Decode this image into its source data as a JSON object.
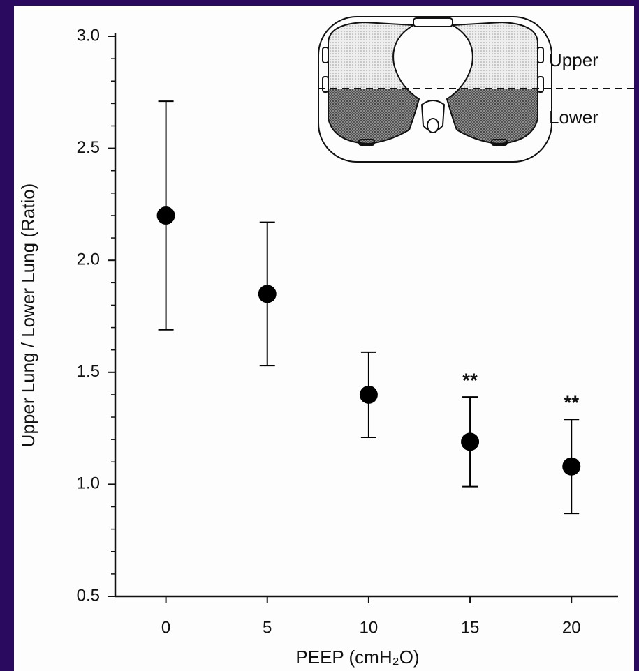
{
  "chart_data": {
    "type": "errorbar",
    "ylabel": "Upper Lung / Lower Lung (Ratio)",
    "xlabel": "PEEP (cmH₂O)",
    "series": [
      {
        "color": "#000000",
        "x": [
          0,
          5,
          10,
          15,
          20
        ],
        "values": [
          2.2,
          1.85,
          1.4,
          1.19,
          1.08
        ],
        "errors": [
          0.51,
          0.32,
          0.19,
          0.2,
          0.21
        ]
      }
    ],
    "xlim": [
      -2.5,
      22.3
    ],
    "xticks": [
      0,
      5,
      10,
      15,
      20
    ],
    "ylim": [
      0.5,
      3.0
    ],
    "yticks": [
      0.5,
      {
        "value": 1,
        "label": "1.0"
      },
      1.5,
      {
        "value": 2,
        "label": "2.0"
      },
      2.5,
      {
        "value": 3,
        "label": "3.0"
      }
    ],
    "y_minor_ticks": [
      0.6,
      0.7,
      0.8,
      0.9,
      1.1,
      1.2,
      1.3,
      1.4,
      1.6,
      1.7,
      1.8,
      1.9,
      2.1,
      2.2,
      2.3,
      2.4,
      2.6,
      2.7,
      2.8,
      2.9
    ],
    "annotations": [
      {
        "x": 15,
        "text": "**"
      },
      {
        "x": 20,
        "text": "**"
      }
    ],
    "inset": {
      "upper_label": "Upper",
      "lower_label": "Lower"
    }
  }
}
